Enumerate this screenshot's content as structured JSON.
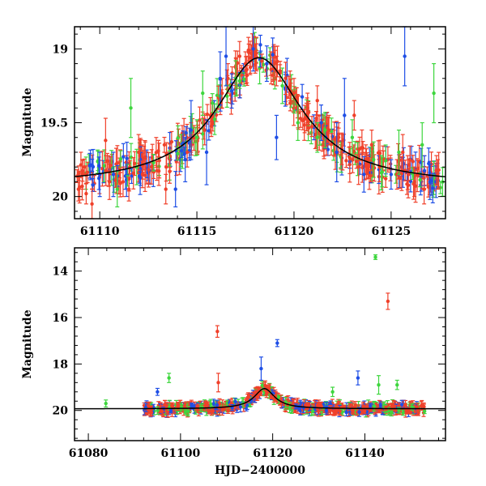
{
  "colors": {
    "red": "#f0402a",
    "blue": "#1f4fe6",
    "green": "#3ed63e",
    "model": "#000000"
  },
  "chart_data": [
    {
      "type": "scatter",
      "panel": "top",
      "title": "",
      "xlabel": "",
      "ylabel": "Magnitude",
      "xlim": [
        61108.7,
        61127.8
      ],
      "ylim": [
        20.15,
        18.85
      ],
      "y_inverted": true,
      "xticks": [
        61110,
        61115,
        61120,
        61125
      ],
      "xtick_labels": [
        "61110",
        "61115",
        "61120",
        "61125"
      ],
      "yticks": [
        19.0,
        19.5,
        20.0
      ],
      "ytick_labels": [
        "19",
        "19.5",
        "20"
      ],
      "model_curve": {
        "name": "microlensing fit",
        "baseline_mag": 19.93,
        "peak_mag": 19.06,
        "t0": 61118.2,
        "width_days": 2.7
      },
      "series": [
        {
          "name": "red",
          "color_key": "red",
          "points": [
            [
              61108.9,
              19.95,
              0.08
            ],
            [
              61109.1,
              19.85,
              0.1
            ],
            [
              61109.3,
              19.98,
              0.07
            ],
            [
              61109.6,
              20.05,
              0.1
            ],
            [
              61110.3,
              19.62,
              0.15
            ],
            [
              61110.5,
              19.9,
              0.12
            ],
            [
              61111.2,
              19.9,
              0.1
            ],
            [
              61111.5,
              19.95,
              0.08
            ],
            [
              61112.0,
              19.7,
              0.12
            ],
            [
              61112.2,
              19.85,
              0.09
            ],
            [
              61113.4,
              19.95,
              0.1
            ],
            [
              61113.6,
              19.83,
              0.08
            ],
            [
              61114.5,
              19.7,
              0.1
            ],
            [
              61114.7,
              19.6,
              0.1
            ],
            [
              61115.4,
              19.55,
              0.1
            ],
            [
              61115.7,
              19.45,
              0.12
            ],
            [
              61116.3,
              19.3,
              0.1
            ],
            [
              61116.6,
              19.2,
              0.1
            ],
            [
              61117.2,
              19.05,
              0.1
            ],
            [
              61117.5,
              19.1,
              0.08
            ],
            [
              61118.0,
              19.05,
              0.08
            ],
            [
              61118.8,
              19.1,
              0.08
            ],
            [
              61119.1,
              19.15,
              0.1
            ],
            [
              61119.8,
              19.25,
              0.1
            ],
            [
              61120.0,
              19.3,
              0.1
            ],
            [
              61120.7,
              19.4,
              0.1
            ],
            [
              61121.2,
              19.35,
              0.1
            ],
            [
              61121.8,
              19.55,
              0.1
            ],
            [
              61122.3,
              19.6,
              0.1
            ],
            [
              61122.5,
              19.7,
              0.12
            ],
            [
              61123.1,
              19.45,
              0.1
            ],
            [
              61123.7,
              19.75,
              0.1
            ],
            [
              61124.0,
              19.65,
              0.1
            ],
            [
              61124.4,
              19.8,
              0.1
            ],
            [
              61125.3,
              19.85,
              0.1
            ],
            [
              61125.6,
              19.7,
              0.12
            ],
            [
              61126.2,
              19.9,
              0.1
            ],
            [
              61126.7,
              19.95,
              0.1
            ],
            [
              61127.4,
              19.85,
              0.1
            ]
          ]
        },
        {
          "name": "blue",
          "color_key": "blue",
          "points": [
            [
              61110.0,
              19.85,
              0.15
            ],
            [
              61110.7,
              19.85,
              0.15
            ],
            [
              61113.9,
              19.95,
              0.12
            ],
            [
              61114.4,
              19.75,
              0.15
            ],
            [
              61114.7,
              19.55,
              0.2
            ],
            [
              61115.5,
              19.7,
              0.22
            ],
            [
              61116.2,
              19.2,
              0.18
            ],
            [
              61116.5,
              19.05,
              0.2
            ],
            [
              61117.9,
              19.0,
              0.15
            ],
            [
              61118.6,
              19.1,
              0.12
            ],
            [
              61119.1,
              19.6,
              0.15
            ],
            [
              61121.4,
              19.5,
              0.12
            ],
            [
              61122.2,
              19.7,
              0.2
            ],
            [
              61122.6,
              19.45,
              0.25
            ],
            [
              61123.6,
              19.85,
              0.12
            ],
            [
              61125.0,
              19.85,
              0.1
            ],
            [
              61125.7,
              19.05,
              0.2
            ],
            [
              61127.0,
              19.9,
              0.12
            ]
          ]
        },
        {
          "name": "green",
          "color_key": "green",
          "points": [
            [
              61110.9,
              19.95,
              0.12
            ],
            [
              61111.6,
              19.4,
              0.2
            ],
            [
              61111.9,
              19.8,
              0.12
            ],
            [
              61115.0,
              19.6,
              0.12
            ],
            [
              61115.3,
              19.3,
              0.15
            ],
            [
              61117.0,
              19.2,
              0.12
            ],
            [
              61119.4,
              19.25,
              0.12
            ],
            [
              61120.2,
              19.5,
              0.12
            ],
            [
              61121.2,
              19.6,
              0.1
            ],
            [
              61121.6,
              19.55,
              0.12
            ],
            [
              61123.0,
              19.6,
              0.12
            ],
            [
              61124.1,
              19.75,
              0.12
            ],
            [
              61125.4,
              19.7,
              0.15
            ],
            [
              61126.6,
              19.65,
              0.15
            ],
            [
              61127.2,
              19.3,
              0.2
            ]
          ]
        }
      ]
    },
    {
      "type": "scatter",
      "panel": "bottom",
      "title": "",
      "xlabel": "HJD−2400000",
      "ylabel": "Magnitude",
      "xlim": [
        61077.0,
        61157.5
      ],
      "ylim": [
        21.3,
        13.0
      ],
      "y_inverted": true,
      "xticks": [
        61080,
        61100,
        61120,
        61140
      ],
      "xtick_labels": [
        "61080",
        "61100",
        "61120",
        "61140"
      ],
      "yticks": [
        14,
        16,
        18,
        20
      ],
      "ytick_labels": [
        "14",
        "16",
        "18",
        "20"
      ],
      "model_curve": {
        "name": "microlensing fit",
        "baseline_mag": 19.93,
        "peak_mag": 19.06,
        "t0": 61118.2,
        "width_days": 2.7
      },
      "outliers": [
        {
          "series": "green",
          "x": 61083.8,
          "y": 19.7,
          "err": 0.15
        },
        {
          "series": "green",
          "x": 61097.5,
          "y": 18.6,
          "err": 0.2
        },
        {
          "series": "red",
          "x": 61108.0,
          "y": 16.6,
          "err": 0.25
        },
        {
          "series": "red",
          "x": 61108.2,
          "y": 18.8,
          "err": 0.4
        },
        {
          "series": "blue",
          "x": 61121.0,
          "y": 17.1,
          "err": 0.15
        },
        {
          "series": "blue",
          "x": 61117.5,
          "y": 18.2,
          "err": 0.5
        },
        {
          "series": "green",
          "x": 61142.3,
          "y": 13.4,
          "err": 0.1
        },
        {
          "series": "red",
          "x": 61145.0,
          "y": 15.3,
          "err": 0.35
        },
        {
          "series": "blue",
          "x": 61138.5,
          "y": 18.6,
          "err": 0.3
        },
        {
          "series": "green",
          "x": 61143.0,
          "y": 18.9,
          "err": 0.4
        },
        {
          "series": "green",
          "x": 61147.0,
          "y": 18.9,
          "err": 0.2
        },
        {
          "series": "green",
          "x": 61133.0,
          "y": 19.2,
          "err": 0.2
        },
        {
          "series": "blue",
          "x": 61095.0,
          "y": 19.2,
          "err": 0.15
        }
      ]
    }
  ]
}
